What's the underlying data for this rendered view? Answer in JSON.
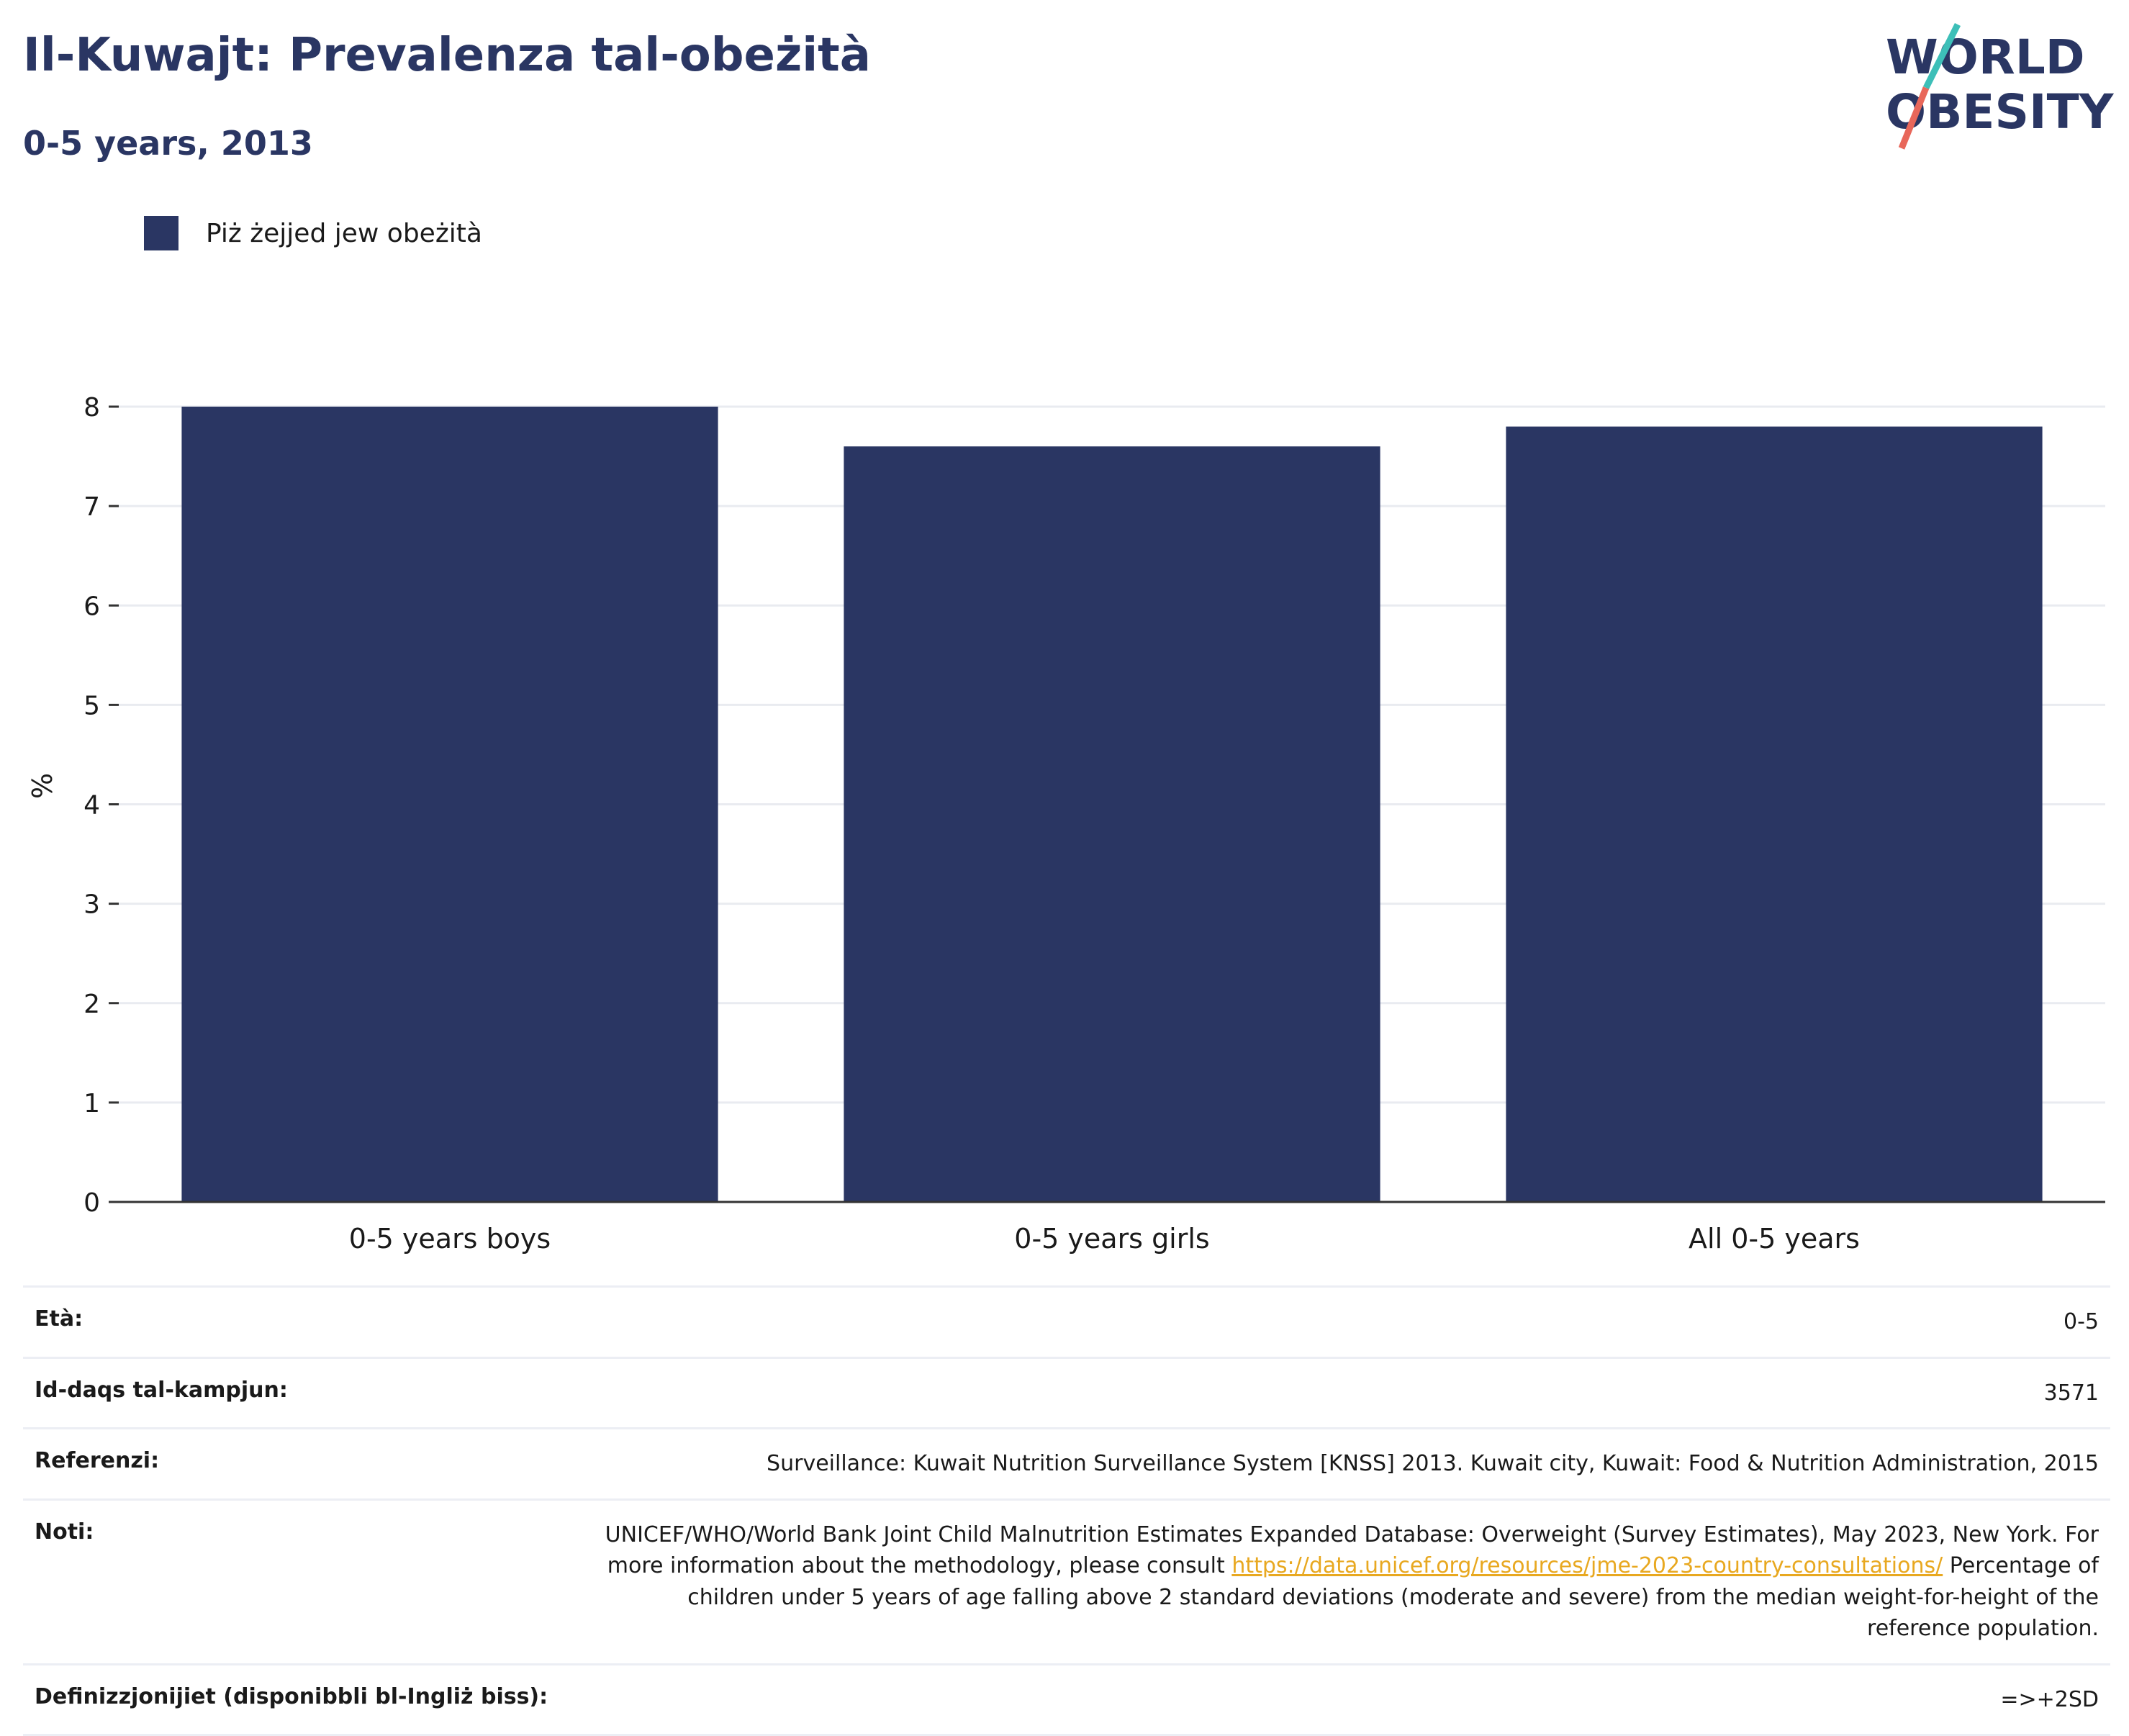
{
  "header": {
    "title": "Il-Kuwajt: Prevalenza tal-obeżità",
    "subtitle": "0-5 years, 2013",
    "logo_line1": "WORLD",
    "logo_line2": "OBESITY"
  },
  "legend": {
    "label": "Piż żejjed jew obeżità"
  },
  "chart_data": {
    "type": "bar",
    "categories": [
      "0-5 years boys",
      "0-5 years girls",
      "All 0-5 years"
    ],
    "series": [
      {
        "name": "Piż żejjed jew obeżità",
        "values": [
          8.0,
          7.6,
          7.8
        ]
      }
    ],
    "ylabel": "%",
    "ylim": [
      0,
      8
    ],
    "yticks": [
      0,
      1,
      2,
      3,
      4,
      5,
      6,
      7,
      8
    ],
    "grid": true,
    "legend_position": "top-left",
    "bar_color": "#2a3663"
  },
  "info": {
    "rows": [
      {
        "label": "Età:",
        "value": "0-5"
      },
      {
        "label": "Id-daqs tal-kampjun:",
        "value": "3571"
      },
      {
        "label": "Referenzi:",
        "value": "Surveillance: Kuwait Nutrition Surveillance System [KNSS] 2013. Kuwait city, Kuwait: Food & Nutrition Administration, 2015"
      },
      {
        "label": "Noti:",
        "value_part1": "UNICEF/WHO/World Bank Joint Child Malnutrition Estimates Expanded Database: Overweight (Survey Estimates), May 2023, New York. For more information about the methodology, please consult ",
        "link": "https://data.unicef.org/resources/jme-2023-country-consultations/",
        "value_part2": " Percentage of children under 5 years of age falling above 2 standard deviations (moderate and severe) from the median weight-for-height of the reference population."
      },
      {
        "label": "Definizzjonijiet (disponibbli bl-Ingliż biss):",
        "value": "=>+2SD"
      }
    ]
  },
  "colors": {
    "brand": "#2a3663",
    "accent_teal": "#3dbfb8",
    "accent_red": "#e8675a",
    "link": "#e8a820"
  }
}
